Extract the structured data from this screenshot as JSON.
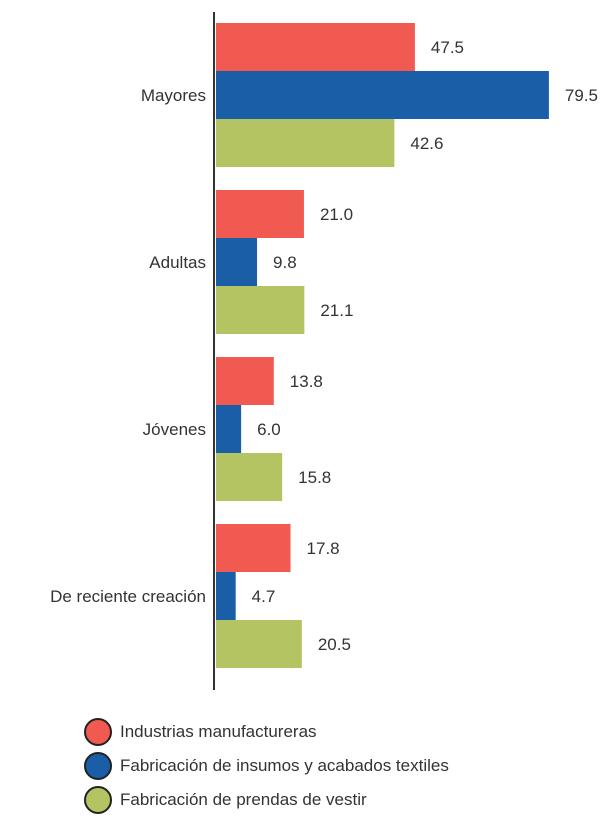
{
  "chart_data": {
    "type": "bar",
    "orientation": "horizontal",
    "categories": [
      "Mayores",
      "Adultas",
      "Jóvenes",
      "De reciente creación"
    ],
    "series": [
      {
        "name": "Industrias manufactureras",
        "color": "#F05A50",
        "values": [
          47.5,
          21.0,
          13.8,
          17.8
        ]
      },
      {
        "name": "Fabricación de insumos y acabados textiles",
        "color": "#1A5EA8",
        "values": [
          79.5,
          9.8,
          6.0,
          4.7
        ]
      },
      {
        "name": "Fabricación de prendas de vestir",
        "color": "#B5C462",
        "values": [
          42.6,
          21.1,
          15.8,
          20.5
        ]
      }
    ],
    "xlim": [
      0,
      80
    ],
    "value_format": "one-decimal",
    "axis_color": "#333333",
    "grid": false,
    "legend_position": "bottom",
    "title": "",
    "xlabel": "",
    "ylabel": ""
  }
}
